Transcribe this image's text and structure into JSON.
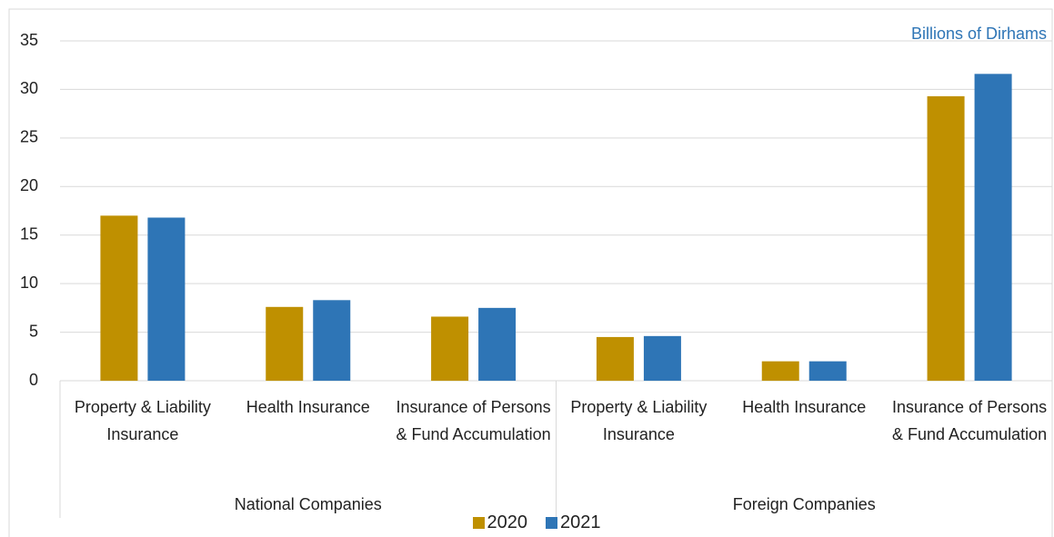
{
  "chart_data": {
    "type": "bar",
    "annotation": "Billions of Dirhams",
    "categories": [
      "Property & Liability Insurance",
      "Health Insurance",
      "Insurance of Persons & Fund Accumulation",
      "Property & Liability Insurance",
      "Health Insurance",
      "Insurance of Persons & Fund Accumulation"
    ],
    "category_groups": [
      "National Companies",
      "Foreign Companies"
    ],
    "series": [
      {
        "name": "2020",
        "color": "#bf9000",
        "values": [
          17.0,
          7.6,
          6.6,
          4.5,
          2.0,
          29.3
        ]
      },
      {
        "name": "2021",
        "color": "#2e75b6",
        "values": [
          16.8,
          8.3,
          7.5,
          4.6,
          2.0,
          31.6
        ]
      }
    ],
    "ylim": [
      0,
      35
    ],
    "yticks": [
      0,
      5,
      10,
      15,
      20,
      25,
      30,
      35
    ],
    "grid": true,
    "legend": "bottom"
  }
}
